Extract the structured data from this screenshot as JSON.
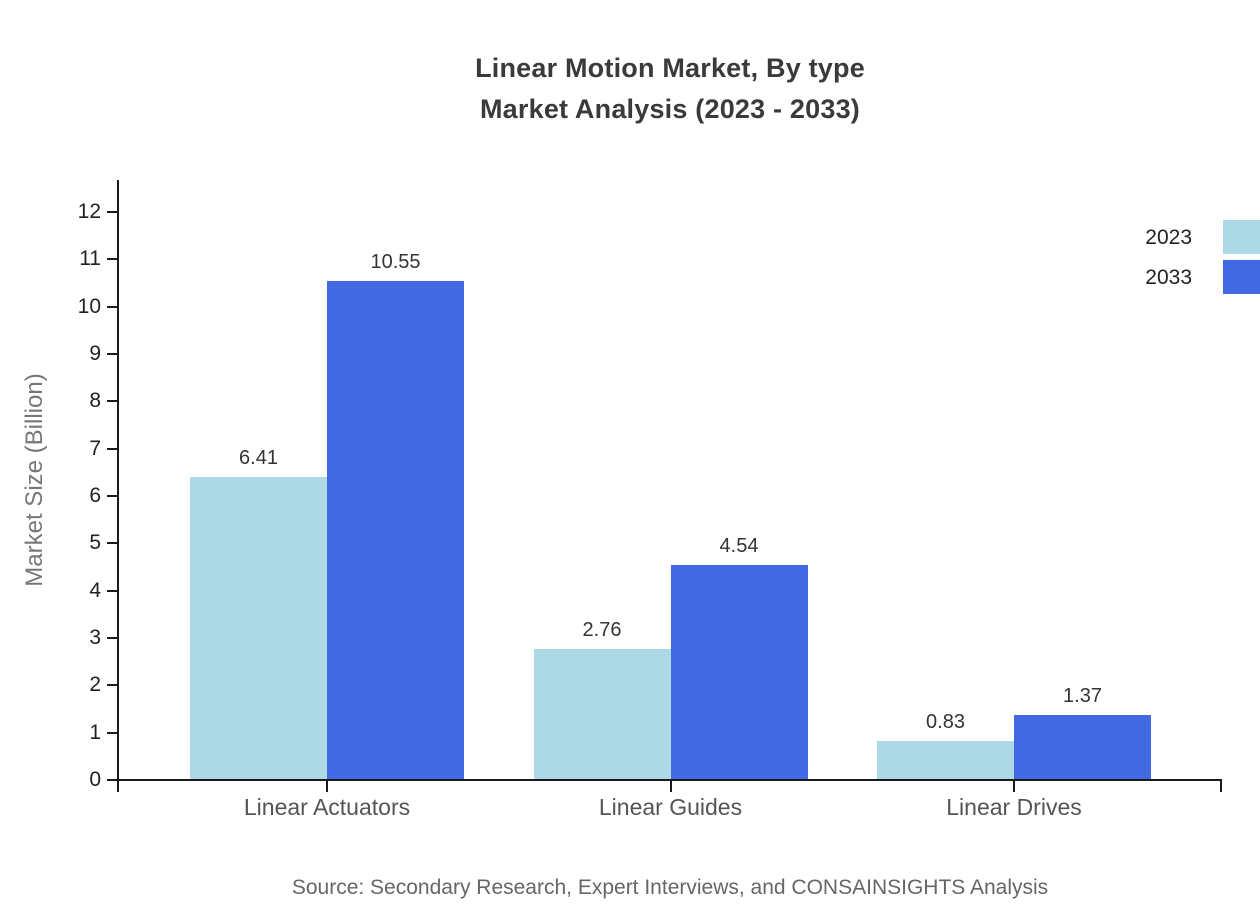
{
  "title": {
    "line1": "Linear Motion Market, By type",
    "line2": "Market Analysis (2023 - 2033)"
  },
  "source_note": "Source: Secondary Research, Expert Interviews, and CONSAINSIGHTS Analysis",
  "colors": {
    "series_2023": "#ADD8E6",
    "series_2033": "#4169E1",
    "axis": "#1a1a1a",
    "title_text": "#3a3a3a",
    "muted_text": "#666666"
  },
  "chart_data": {
    "type": "bar",
    "title": "Linear Motion Market, By type",
    "subtitle": "Market Analysis (2023 - 2033)",
    "categories": [
      "Linear Actuators",
      "Linear Guides",
      "Linear Drives"
    ],
    "series": [
      {
        "name": "2023",
        "color": "#ADD8E6",
        "values": [
          6.41,
          2.76,
          0.83
        ]
      },
      {
        "name": "2033",
        "color": "#4169E1",
        "values": [
          10.55,
          4.54,
          1.37
        ]
      }
    ],
    "xlabel": "",
    "ylabel": "Market Size (Billion)",
    "ylim": [
      0,
      12
    ],
    "yticks": [
      0,
      1,
      2,
      3,
      4,
      5,
      6,
      7,
      8,
      9,
      10,
      11,
      12
    ],
    "grid": false,
    "legend_position": "top-right",
    "value_labels": true,
    "value_label_format": "0.00"
  },
  "legend": {
    "items": [
      {
        "label": "2023",
        "color": "#ADD8E6"
      },
      {
        "label": "2033",
        "color": "#4169E1"
      }
    ]
  }
}
